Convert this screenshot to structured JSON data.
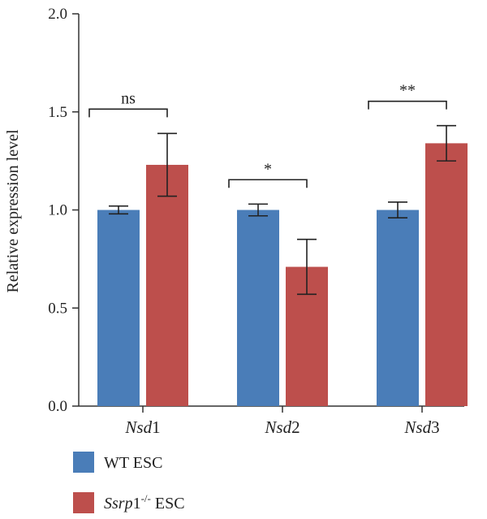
{
  "chart_data": {
    "type": "bar",
    "ylabel": "Relative expression level",
    "ylim": [
      0,
      2.0
    ],
    "yticks": [
      "0.0",
      "0.5",
      "1.0",
      "1.5",
      "2.0"
    ],
    "categories": [
      "Nsd1",
      "Nsd2",
      "Nsd3"
    ],
    "series": [
      {
        "name": "WT ESC",
        "color": "#4a7db8",
        "values": [
          1.0,
          1.0,
          1.0
        ],
        "errors": [
          0.02,
          0.03,
          0.04
        ]
      },
      {
        "name": "Ssrp1-/- ESC",
        "color": "#bd4f4c",
        "values": [
          1.23,
          0.71,
          1.34
        ],
        "errors": [
          0.16,
          0.14,
          0.09
        ]
      }
    ],
    "significance": [
      "ns",
      "*",
      "**"
    ],
    "legend_placement": "bottom-left"
  }
}
